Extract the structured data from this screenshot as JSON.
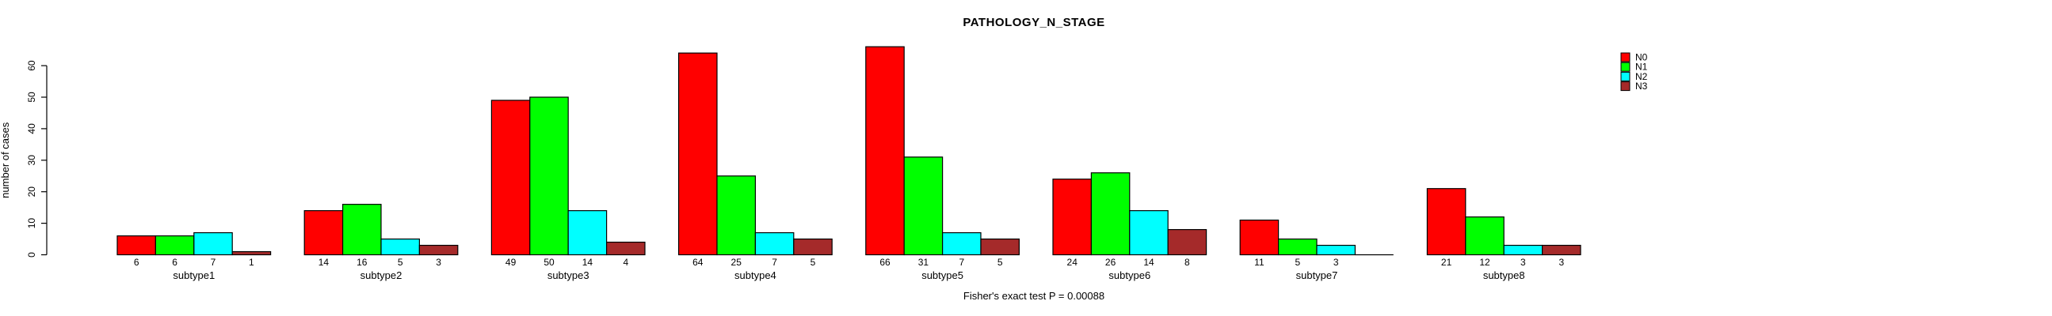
{
  "title": "PATHOLOGY_N_STAGE",
  "annotation": "Fisher's exact test P = 0.00088",
  "chart_data": {
    "type": "bar",
    "grouped": true,
    "title": "PATHOLOGY_N_STAGE",
    "xlabel": "",
    "ylabel": "number of cases",
    "categories": [
      "subtype1",
      "subtype2",
      "subtype3",
      "subtype4",
      "subtype5",
      "subtype6",
      "subtype7",
      "subtype8"
    ],
    "series": [
      {
        "name": "N0",
        "color": "#ff0000",
        "values": [
          6,
          14,
          49,
          64,
          66,
          24,
          11,
          21
        ]
      },
      {
        "name": "N1",
        "color": "#00ff00",
        "values": [
          6,
          16,
          50,
          25,
          31,
          26,
          5,
          12
        ]
      },
      {
        "name": "N2",
        "color": "#00ffff",
        "values": [
          7,
          5,
          14,
          7,
          7,
          14,
          3,
          3
        ]
      },
      {
        "name": "N3",
        "color": "#a52a2a",
        "values": [
          1,
          3,
          4,
          5,
          5,
          8,
          0,
          3
        ]
      }
    ],
    "yticks": [
      0,
      10,
      20,
      30,
      40,
      50,
      60
    ],
    "ylim": [
      0,
      60
    ],
    "grid": false,
    "bar_value_labels": true,
    "hide_zero_value_labels": true,
    "legend_position": "right",
    "bar_border_color": "#000000",
    "footnote": "Fisher's exact test P = 0.00088"
  }
}
